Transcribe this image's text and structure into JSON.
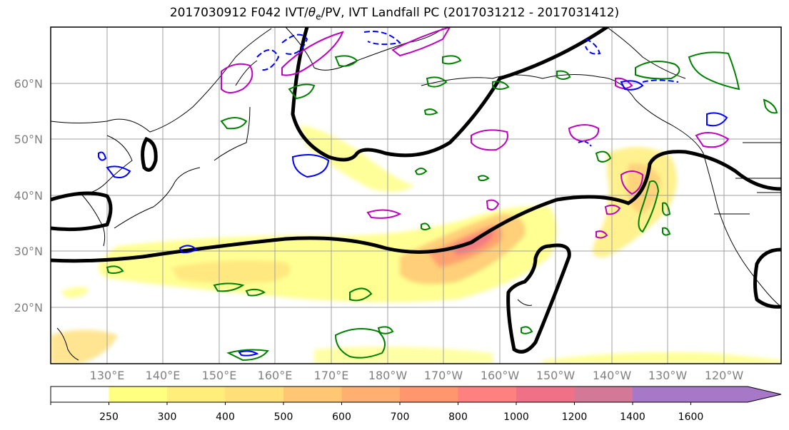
{
  "title": {
    "prefix": "2017030912 F042 IVT/",
    "theta": "θ",
    "theta_sub": "e",
    "suffix": "/PV, IVT Landfall PC (2017031212 - 2017031412)"
  },
  "map": {
    "lat_labels": [
      "60°N",
      "50°N",
      "40°N",
      "30°N",
      "20°N"
    ],
    "lon_labels": [
      "130°E",
      "140°E",
      "150°E",
      "160°E",
      "170°E",
      "180°W",
      "170°W",
      "160°W",
      "150°W",
      "140°W",
      "130°W",
      "120°W"
    ],
    "contour_colors": {
      "theta_e": "#000000",
      "pv_positive": "#008000",
      "pv_negative": "#0000ff",
      "ivt_outline": "#bf00bf"
    }
  },
  "colorbar": {
    "ticks": [
      "250",
      "300",
      "400",
      "500",
      "600",
      "700",
      "800",
      "1000",
      "1200",
      "1400",
      "1600"
    ],
    "colors": [
      "#ffffff",
      "#ffff80",
      "#ffef7a",
      "#ffdf77",
      "#ffc774",
      "#ffb070",
      "#ff966d",
      "#ff8080",
      "#f07088",
      "#d47898",
      "#a878c8"
    ]
  }
}
